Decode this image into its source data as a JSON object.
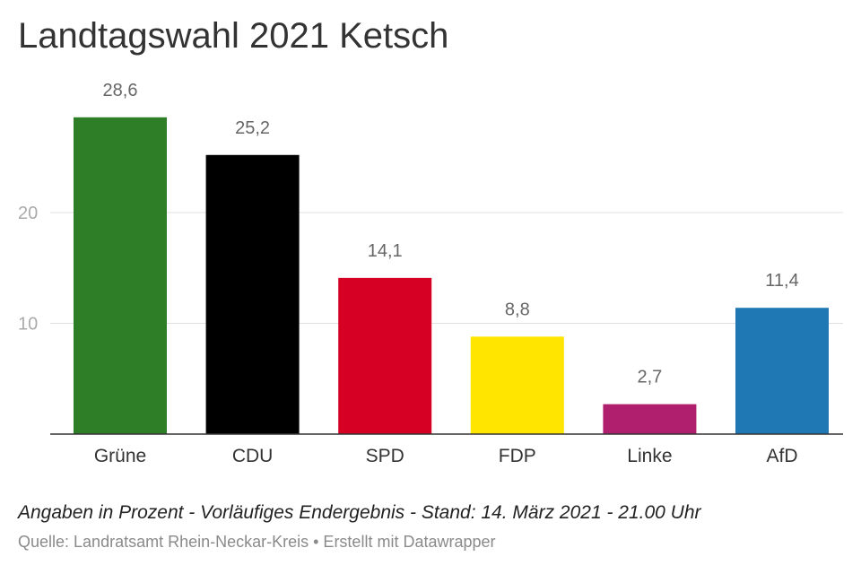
{
  "title": "Landtagswahl 2021 Ketsch",
  "note": "Angaben in Prozent - Vorläufiges Endergebnis - Stand: 14. März 2021 - 21.00 Uhr",
  "source": "Quelle: Landratsamt Rhein-Neckar-Kreis • Erstellt mit Datawrapper",
  "chart_data": {
    "type": "bar",
    "categories": [
      "Grüne",
      "CDU",
      "SPD",
      "FDP",
      "Linke",
      "AfD"
    ],
    "values": [
      28.6,
      25.2,
      14.1,
      8.8,
      2.7,
      11.4
    ],
    "value_labels": [
      "28,6",
      "25,2",
      "14,1",
      "8,8",
      "2,7",
      "11,4"
    ],
    "colors": [
      "#2e7d27",
      "#000000",
      "#d50023",
      "#ffe500",
      "#b01e6e",
      "#1f77b4"
    ],
    "yticks": [
      10,
      20
    ],
    "ylim": [
      0,
      30
    ],
    "grid": true,
    "title": "Landtagswahl 2021 Ketsch",
    "xlabel": "",
    "ylabel": ""
  }
}
